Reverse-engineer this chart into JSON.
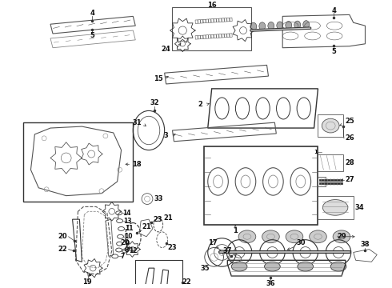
{
  "bg_color": "#ffffff",
  "fig_width": 4.9,
  "fig_height": 3.6,
  "dpi": 100
}
